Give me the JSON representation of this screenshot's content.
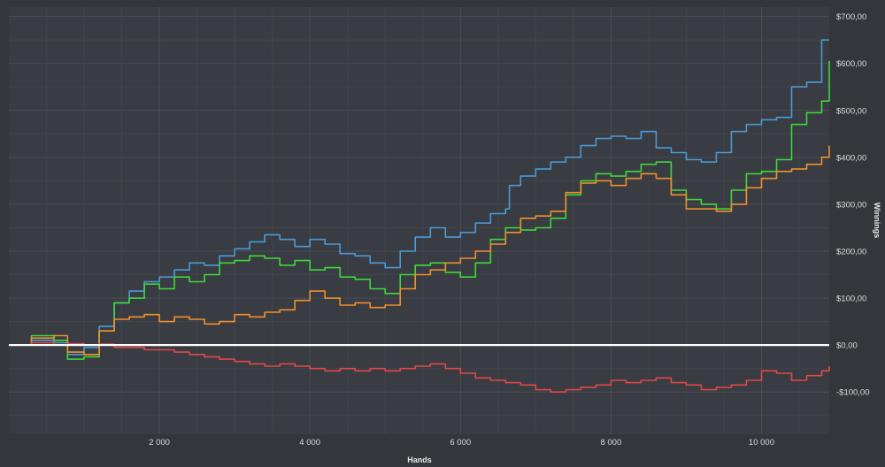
{
  "chart_data": {
    "type": "line",
    "xlabel": "Hands",
    "ylabel": "Winnings",
    "xlim": [
      0,
      10900
    ],
    "ylim": [
      -190,
      720
    ],
    "x_ticks": [
      2000,
      4000,
      6000,
      8000,
      10000
    ],
    "x_tick_labels": [
      "2 000",
      "4 000",
      "6 000",
      "8 000",
      "10 000"
    ],
    "y_ticks": [
      700,
      600,
      500,
      400,
      300,
      200,
      100,
      0,
      -100
    ],
    "y_tick_labels": [
      "$700,00",
      "$600,00",
      "$500,00",
      "$400,00",
      "$300,00",
      "$200,00",
      "$100,00",
      "$0,00",
      "-$100,00"
    ],
    "grid": true,
    "y_axis_position": "right",
    "zero_line": true,
    "series": [
      {
        "color": "#4a9ad8",
        "x": [
          0,
          300,
          600,
          780,
          1000,
          1200,
          1400,
          1600,
          1800,
          2000,
          2200,
          2400,
          2600,
          2800,
          3000,
          3200,
          3400,
          3600,
          3800,
          4000,
          4200,
          4400,
          4600,
          4800,
          5000,
          5200,
          5400,
          5600,
          5800,
          6000,
          6200,
          6400,
          6600,
          6650,
          6800,
          7000,
          7200,
          7400,
          7600,
          7800,
          8000,
          8200,
          8400,
          8600,
          8800,
          9000,
          9200,
          9400,
          9600,
          9800,
          10000,
          10200,
          10400,
          10600,
          10800,
          10900
        ],
        "y": [
          0,
          10,
          5,
          -20,
          -5,
          40,
          90,
          115,
          135,
          145,
          160,
          175,
          170,
          190,
          205,
          220,
          235,
          225,
          210,
          225,
          215,
          195,
          190,
          175,
          165,
          200,
          230,
          250,
          230,
          240,
          260,
          280,
          290,
          340,
          360,
          375,
          390,
          400,
          425,
          440,
          445,
          440,
          455,
          420,
          410,
          395,
          390,
          410,
          455,
          470,
          480,
          485,
          550,
          560,
          650,
          650
        ]
      },
      {
        "color": "#3fd83a",
        "x": [
          0,
          300,
          600,
          780,
          1000,
          1200,
          1400,
          1600,
          1800,
          2000,
          2200,
          2400,
          2600,
          2800,
          3000,
          3200,
          3400,
          3600,
          3800,
          4000,
          4200,
          4400,
          4600,
          4800,
          5000,
          5200,
          5400,
          5600,
          5800,
          6000,
          6200,
          6400,
          6600,
          6800,
          7000,
          7200,
          7400,
          7600,
          7800,
          8000,
          8200,
          8400,
          8600,
          8800,
          9000,
          9200,
          9400,
          9600,
          9800,
          10000,
          10200,
          10400,
          10600,
          10800,
          10900
        ],
        "y": [
          0,
          20,
          10,
          -30,
          -25,
          30,
          90,
          100,
          130,
          120,
          145,
          135,
          150,
          175,
          180,
          190,
          185,
          170,
          180,
          160,
          165,
          145,
          140,
          120,
          110,
          150,
          170,
          175,
          155,
          145,
          175,
          225,
          250,
          245,
          250,
          270,
          320,
          350,
          365,
          360,
          370,
          385,
          390,
          330,
          310,
          300,
          290,
          330,
          365,
          370,
          395,
          470,
          495,
          520,
          605
        ]
      },
      {
        "color": "#f0902e",
        "x": [
          0,
          300,
          600,
          780,
          1000,
          1200,
          1400,
          1600,
          1800,
          2000,
          2200,
          2400,
          2600,
          2800,
          3000,
          3200,
          3400,
          3600,
          3800,
          4000,
          4200,
          4400,
          4600,
          4800,
          5000,
          5200,
          5400,
          5600,
          5800,
          6000,
          6200,
          6400,
          6600,
          6800,
          7000,
          7200,
          7400,
          7600,
          7800,
          8000,
          8200,
          8400,
          8600,
          8800,
          9000,
          9200,
          9400,
          9600,
          9800,
          10000,
          10200,
          10400,
          10600,
          10800,
          10900
        ],
        "y": [
          0,
          15,
          20,
          -15,
          -20,
          30,
          55,
          60,
          65,
          50,
          60,
          55,
          45,
          50,
          65,
          60,
          70,
          75,
          95,
          115,
          100,
          85,
          90,
          80,
          85,
          120,
          150,
          160,
          175,
          185,
          200,
          215,
          240,
          270,
          275,
          285,
          325,
          345,
          350,
          340,
          355,
          365,
          355,
          320,
          290,
          290,
          285,
          300,
          335,
          355,
          370,
          375,
          385,
          400,
          425
        ]
      },
      {
        "color": "#e0484a",
        "x": [
          0,
          300,
          600,
          780,
          1000,
          1200,
          1400,
          1600,
          1800,
          2000,
          2200,
          2400,
          2600,
          2800,
          3000,
          3200,
          3400,
          3600,
          3800,
          4000,
          4200,
          4400,
          4600,
          4800,
          5000,
          5200,
          5400,
          5600,
          5800,
          6000,
          6200,
          6400,
          6600,
          6800,
          7000,
          7200,
          7400,
          7600,
          7800,
          8000,
          8200,
          8400,
          8600,
          8800,
          9000,
          9200,
          9400,
          9600,
          9800,
          10000,
          10200,
          10400,
          10600,
          10800,
          10900
        ],
        "y": [
          0,
          5,
          0,
          3,
          0,
          2,
          -5,
          -5,
          -10,
          -10,
          -15,
          -20,
          -25,
          -30,
          -35,
          -40,
          -45,
          -40,
          -45,
          -50,
          -55,
          -50,
          -55,
          -50,
          -55,
          -50,
          -45,
          -40,
          -50,
          -60,
          -70,
          -75,
          -80,
          -85,
          -95,
          -100,
          -95,
          -90,
          -85,
          -75,
          -80,
          -75,
          -70,
          -80,
          -85,
          -95,
          -90,
          -85,
          -75,
          -55,
          -60,
          -75,
          -65,
          -55,
          -45
        ]
      }
    ]
  }
}
